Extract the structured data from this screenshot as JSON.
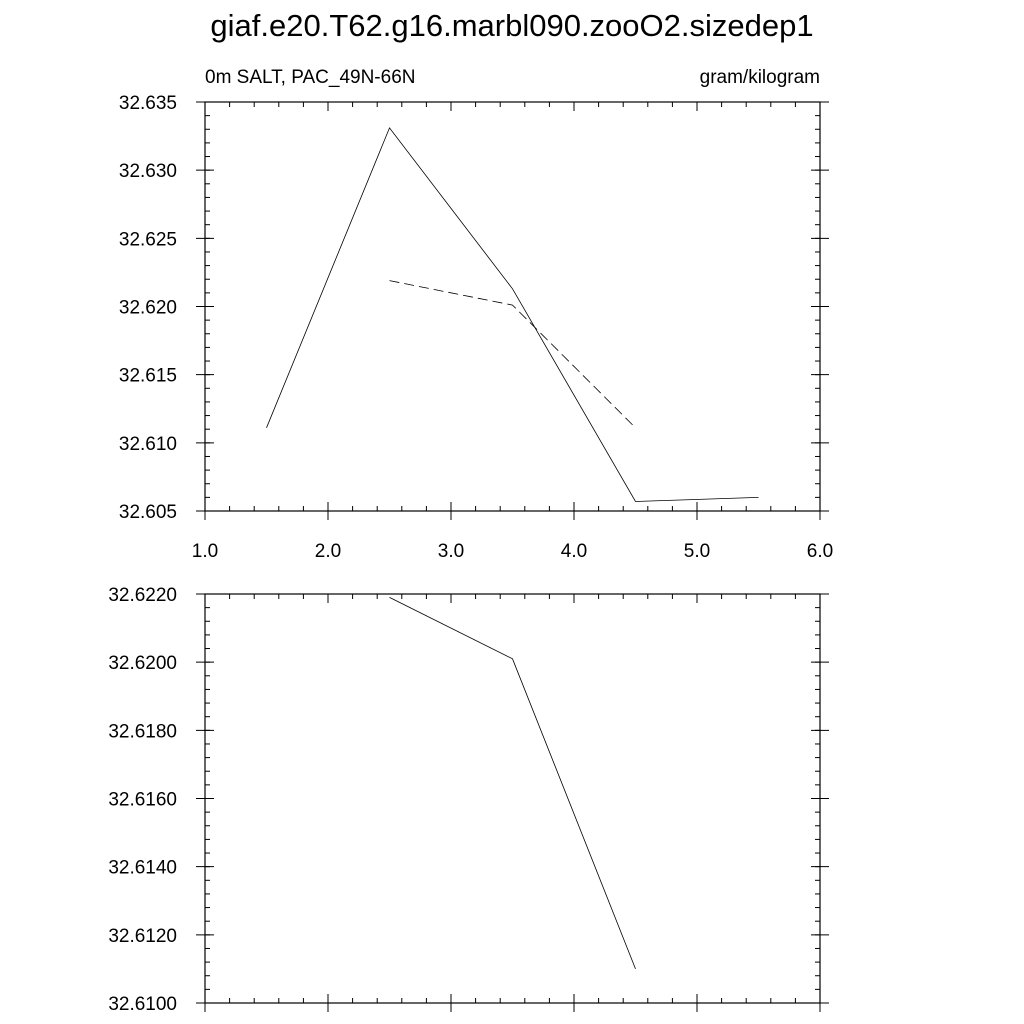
{
  "title": "giaf.e20.T62.g16.marbl090.zooO2.sizedep1",
  "chart_data": [
    {
      "type": "line",
      "left_label": "0m SALT, PAC_49N-66N",
      "right_label": "gram/kilogram",
      "xlim": [
        1.0,
        6.0
      ],
      "ylim": [
        32.605,
        32.635
      ],
      "x_ticks": [
        1.0,
        2.0,
        3.0,
        4.0,
        5.0,
        6.0
      ],
      "x_tick_labels": [
        "1.0",
        "2.0",
        "3.0",
        "4.0",
        "5.0",
        "6.0"
      ],
      "y_ticks": [
        32.605,
        32.61,
        32.615,
        32.62,
        32.625,
        32.63,
        32.635
      ],
      "y_tick_labels": [
        "32.605",
        "32.610",
        "32.615",
        "32.620",
        "32.625",
        "32.630",
        "32.635"
      ],
      "x_minor_step": 0.2,
      "y_minor_step": 0.001,
      "series": [
        {
          "style": "solid",
          "x": [
            1.5,
            2.5,
            3.5,
            4.5,
            5.5
          ],
          "y": [
            32.6111,
            32.6331,
            32.6213,
            32.6057,
            32.606
          ]
        },
        {
          "style": "dashed",
          "x": [
            2.5,
            3.5,
            4.5
          ],
          "y": [
            32.6219,
            32.6201,
            32.6111
          ]
        }
      ]
    },
    {
      "type": "line",
      "xlim": [
        1.0,
        6.0
      ],
      "ylim": [
        32.61,
        32.622
      ],
      "x_ticks": [
        1.0,
        2.0,
        3.0,
        4.0,
        5.0,
        6.0
      ],
      "x_tick_labels": [],
      "y_ticks": [
        32.61,
        32.612,
        32.614,
        32.616,
        32.618,
        32.62,
        32.622
      ],
      "y_tick_labels": [
        "32.6100",
        "32.6120",
        "32.6140",
        "32.6160",
        "32.6180",
        "32.6200",
        "32.6220"
      ],
      "x_minor_step": 0.2,
      "y_minor_step": 0.0004,
      "series": [
        {
          "style": "solid",
          "x": [
            2.5,
            3.5,
            4.5
          ],
          "y": [
            32.6219,
            32.6201,
            32.611
          ]
        }
      ]
    }
  ]
}
